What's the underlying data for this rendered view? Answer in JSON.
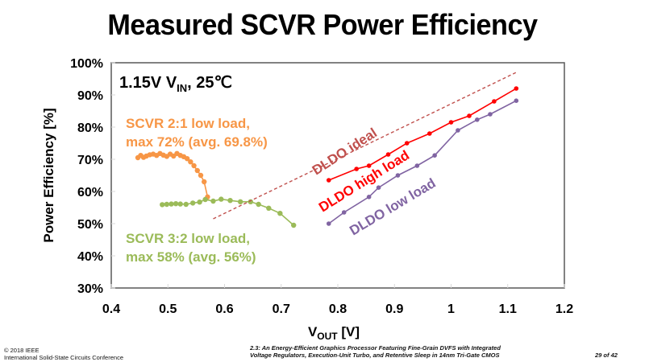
{
  "slide": {
    "title": "Measured SCVR Power Efficiency",
    "footer_left": [
      "© 2018 IEEE",
      "International Solid-State Circuits Conference"
    ],
    "footer_center": [
      "2.3: An Energy-Efficient Graphics Processor Featuring Fine-Grain DVFS with Integrated",
      "Voltage Regulators, Execution-Unit Turbo, and Retentive Sleep in 14nm Tri-Gate CMOS"
    ],
    "page": "29 of 42"
  },
  "chart_data": {
    "type": "line",
    "title": "Measured SCVR Power Efficiency",
    "condition_label": {
      "main": "1.15V V",
      "sub": "IN",
      "tail": ", 25℃"
    },
    "xlabel": {
      "main": "V",
      "sub": "OUT",
      "tail": " [V]"
    },
    "ylabel": "Power Efficiency [%]",
    "xlim": [
      0.4,
      1.2
    ],
    "ylim": [
      30,
      100
    ],
    "xticks": [
      0.4,
      0.5,
      0.6,
      0.7,
      0.8,
      0.9,
      1,
      1.1,
      1.2
    ],
    "xtick_labels": [
      "0.4",
      "0.5",
      "0.6",
      "0.7",
      "0.8",
      "0.9",
      "1",
      "1.1",
      "1.2"
    ],
    "yticks": [
      30,
      40,
      50,
      60,
      70,
      80,
      90,
      100
    ],
    "ytick_labels": [
      "30%",
      "40%",
      "50%",
      "60%",
      "70%",
      "80%",
      "90%",
      "100%"
    ],
    "grid": false,
    "legend": "none (inline annotations)",
    "series": [
      {
        "name": "SCVR 2:1 low load",
        "color": "#F79646",
        "style": "solid-markers",
        "annotation": [
          "SCVR 2:1 low load,",
          "max 72% (avg. 69.8%)"
        ],
        "x": [
          0.447,
          0.452,
          0.457,
          0.462,
          0.468,
          0.474,
          0.48,
          0.486,
          0.492,
          0.498,
          0.504,
          0.51,
          0.516,
          0.522,
          0.528,
          0.534,
          0.54,
          0.546,
          0.552,
          0.558,
          0.564,
          0.57
        ],
        "y": [
          70.5,
          71.2,
          70.6,
          71.0,
          71.4,
          71.6,
          71.2,
          71.8,
          71.3,
          70.9,
          71.6,
          71.0,
          71.8,
          71.2,
          70.8,
          70.2,
          69.2,
          68.0,
          66.5,
          65.0,
          63.0,
          58.3
        ]
      },
      {
        "name": "SCVR 3:2 low load",
        "color": "#9BBB59",
        "style": "solid-markers",
        "annotation": [
          "SCVR 3:2 low load,",
          "max 58% (avg. 56%)"
        ],
        "x": [
          0.49,
          0.498,
          0.506,
          0.514,
          0.522,
          0.532,
          0.544,
          0.556,
          0.566,
          0.58,
          0.594,
          0.61,
          0.628,
          0.646,
          0.66,
          0.678,
          0.698,
          0.722
        ],
        "y": [
          55.9,
          56.0,
          56.1,
          56.2,
          56.1,
          56.0,
          56.4,
          56.7,
          57.5,
          57.0,
          57.6,
          57.2,
          56.8,
          56.8,
          56.0,
          54.8,
          53.2,
          49.5
        ]
      },
      {
        "name": "DLDO ideal",
        "color": "#C0504D",
        "style": "dashed",
        "annotation": [
          "DLDO ideal"
        ],
        "x": [
          0.58,
          1.115
        ],
        "y": [
          51.5,
          97
        ]
      },
      {
        "name": "DLDO high load",
        "color": "#FF0000",
        "style": "solid-markers",
        "annotation": [
          "DLDO high load"
        ],
        "x": [
          0.784,
          0.833,
          0.855,
          0.889,
          0.922,
          0.962,
          1.0,
          1.032,
          1.076,
          1.115
        ],
        "y": [
          63.5,
          67.0,
          68.0,
          71.5,
          75.0,
          78.0,
          81.5,
          83.5,
          88.0,
          92.0
        ]
      },
      {
        "name": "DLDO low load",
        "color": "#8064A2",
        "style": "solid-markers",
        "annotation": [
          "DLDO low load"
        ],
        "x": [
          0.784,
          0.811,
          0.855,
          0.872,
          0.906,
          0.94,
          0.971,
          1.012,
          1.046,
          1.069,
          1.115
        ],
        "y": [
          50.0,
          53.5,
          58.3,
          61.2,
          65.0,
          68.0,
          71.2,
          79.0,
          82.3,
          84.0,
          88.2
        ]
      }
    ]
  }
}
